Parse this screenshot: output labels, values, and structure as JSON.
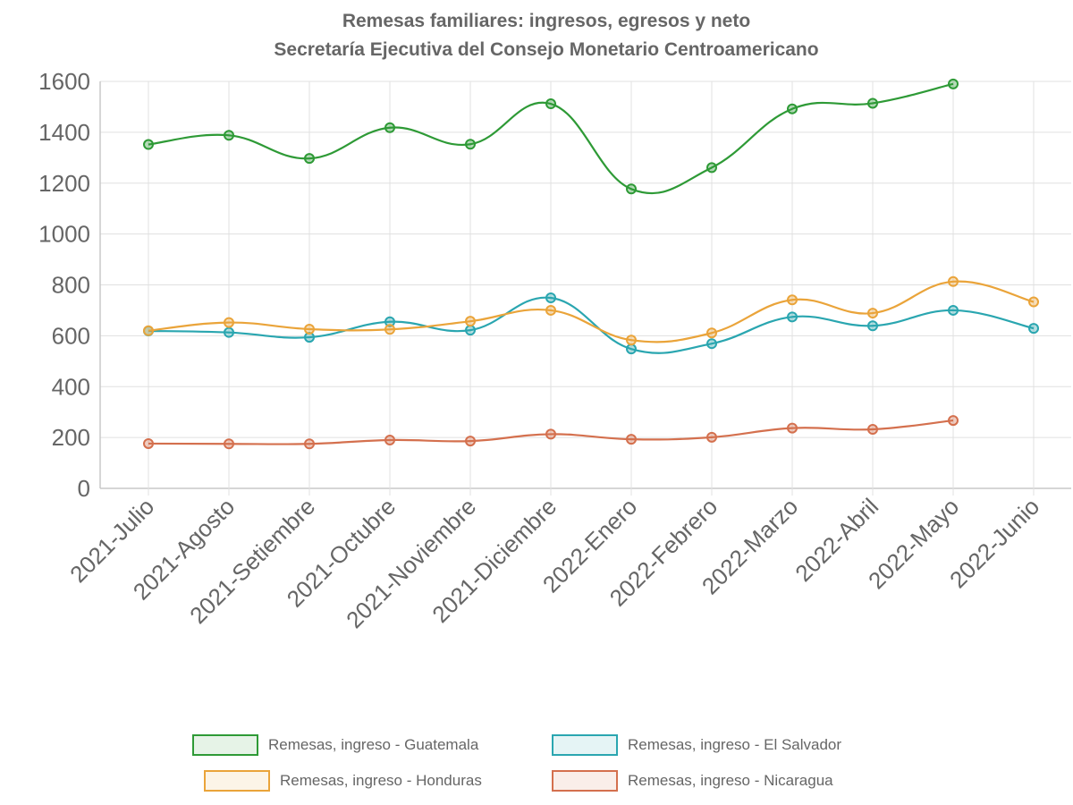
{
  "chart_data": {
    "type": "line",
    "title": "Remesas familiares: ingresos, egresos y neto",
    "subtitle": "Secretaría Ejecutiva del Consejo Monetario Centroamericano",
    "categories": [
      "2021-Julio",
      "2021-Agosto",
      "2021-Setiembre",
      "2021-Octubre",
      "2021-Noviembre",
      "2021-Diciembre",
      "2022-Enero",
      "2022-Febrero",
      "2022-Marzo",
      "2022-Abril",
      "2022-Mayo",
      "2022-Junio"
    ],
    "y_ticks": [
      "0",
      "200",
      "400",
      "600",
      "800",
      "1000",
      "1200",
      "1400",
      "1600"
    ],
    "ylim": [
      0,
      1600
    ],
    "grid": true,
    "legend_position": "bottom",
    "series": [
      {
        "name": "Remesas, ingreso - Guatemala",
        "color": "#2e9a36",
        "values": [
          1352,
          1388,
          1297,
          1418,
          1353,
          1512,
          1177,
          1261,
          1492,
          1514,
          1590,
          null
        ]
      },
      {
        "name": "Remesas, ingreso - El Salvador",
        "color": "#2aa6b0",
        "values": [
          619,
          613,
          594,
          655,
          622,
          749,
          548,
          569,
          674,
          639,
          700,
          629
        ]
      },
      {
        "name": "Remesas, ingreso - Honduras",
        "color": "#eaa43a",
        "values": [
          620,
          652,
          626,
          625,
          657,
          700,
          583,
          611,
          741,
          689,
          813,
          733
        ]
      },
      {
        "name": "Remesas, ingreso - Nicaragua",
        "color": "#d4704e",
        "values": [
          176,
          175,
          175,
          190,
          186,
          213,
          193,
          201,
          237,
          232,
          267,
          null
        ]
      }
    ]
  }
}
